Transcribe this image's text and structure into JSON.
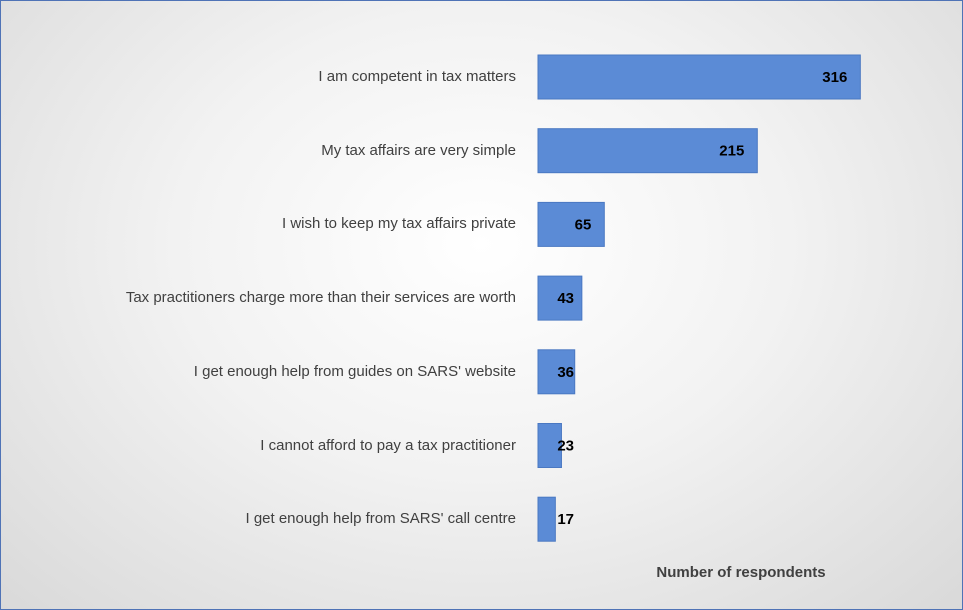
{
  "chart_data": {
    "type": "bar",
    "orientation": "horizontal",
    "categories": [
      "I am competent in tax matters",
      "My tax affairs are very simple",
      "I wish to keep my tax affairs private",
      "Tax practitioners charge more than their services are worth",
      "I get enough help from guides on SARS' website",
      "I cannot afford to pay a tax practitioner",
      "I get enough help from SARS' call centre"
    ],
    "values": [
      316,
      215,
      65,
      43,
      36,
      23,
      17
    ],
    "color": "#5b8bd6",
    "xlim": [
      0,
      400
    ],
    "x_label": "Number of respondents"
  }
}
